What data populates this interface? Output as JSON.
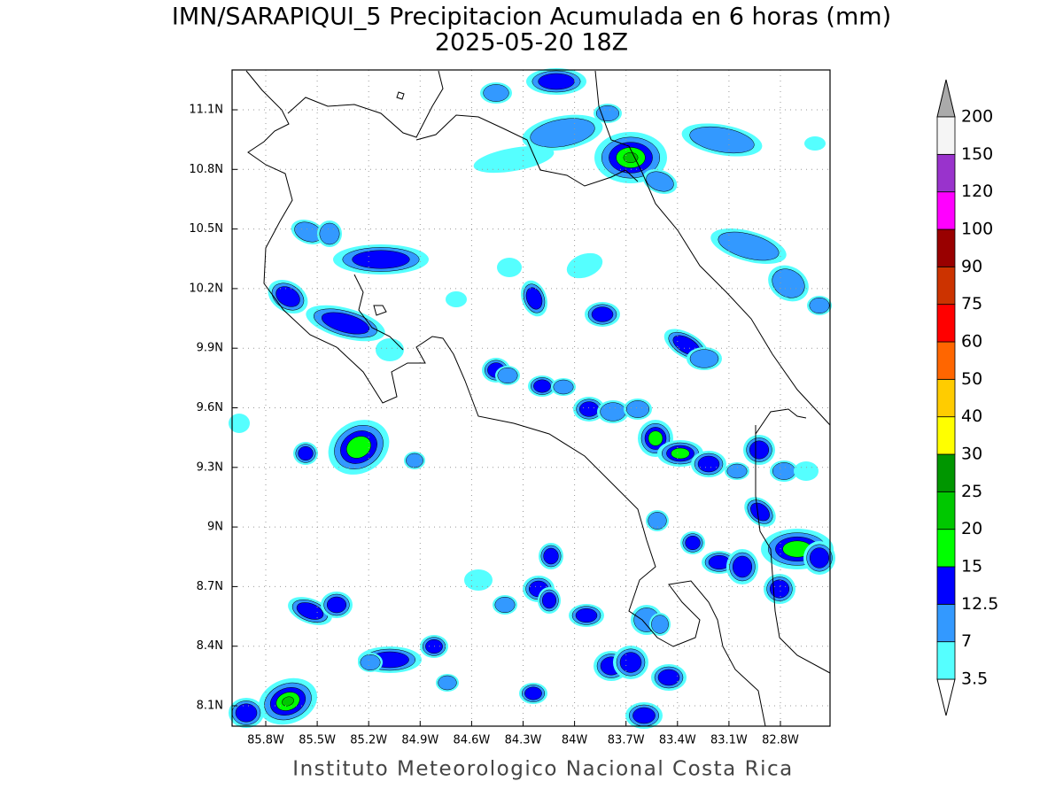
{
  "title": "IMN/SARAPIQUI_5 Precipitacion Acumulada en 6 horas (mm)",
  "subtitle": "2025-05-20 18Z",
  "footer": "Instituto Meteorologico Nacional Costa Rica",
  "map": {
    "lon_labels": [
      "85.8W",
      "85.5W",
      "85.2W",
      "84.9W",
      "84.6W",
      "84.3W",
      "84W",
      "83.7W",
      "83.4W",
      "83.1W",
      "82.8W"
    ],
    "lat_labels": [
      "11.1N",
      "10.8N",
      "10.5N",
      "10.2N",
      "9.9N",
      "9.6N",
      "9.3N",
      "9N",
      "8.7N",
      "8.4N",
      "8.1N"
    ]
  },
  "colorbar": {
    "levels": [
      3.5,
      7,
      12.5,
      15,
      20,
      25,
      30,
      40,
      50,
      60,
      75,
      90,
      100,
      120,
      150,
      200
    ],
    "colors": [
      "#55ffff",
      "#3399ff",
      "#0000ff",
      "#00ff00",
      "#00c800",
      "#009600",
      "#ffff00",
      "#ffcc00",
      "#ff6600",
      "#ff0000",
      "#cc3300",
      "#990000",
      "#ff00ff",
      "#9933cc",
      "#f5f5f5"
    ],
    "under_color": "#ffffff",
    "over_color": "#aaaaaa"
  }
}
